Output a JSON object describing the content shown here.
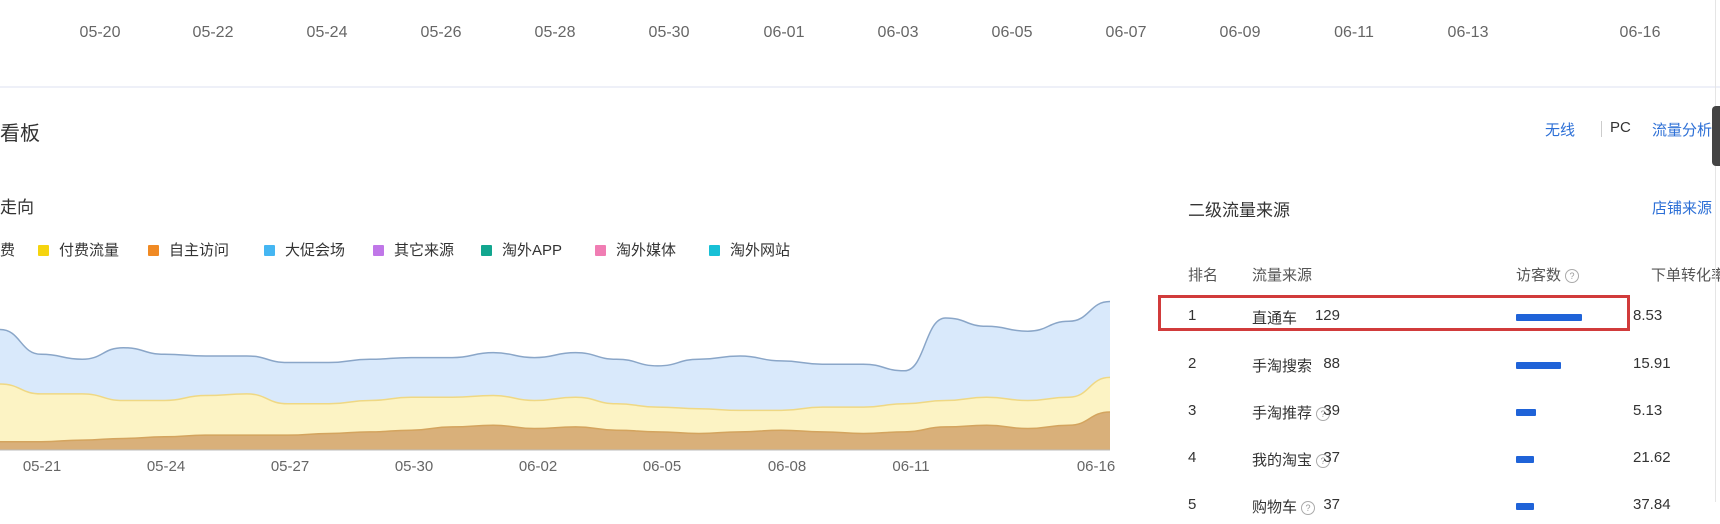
{
  "top_axis": [
    "05-20",
    "05-22",
    "05-24",
    "05-26",
    "05-28",
    "05-30",
    "06-01",
    "06-03",
    "06-05",
    "06-07",
    "06-09",
    "06-11",
    "06-13",
    "06-16"
  ],
  "board": {
    "title": "看板",
    "toggle_wireless": "无线",
    "toggle_pc": "PC",
    "flow_link": "流量分析"
  },
  "trend": {
    "subtitle": "走向",
    "legend": [
      {
        "label": "费",
        "color": "#2c6fd6"
      },
      {
        "label": "付费流量",
        "color": "#f5d40f"
      },
      {
        "label": "自主访问",
        "color": "#f08a24"
      },
      {
        "label": "大促会场",
        "color": "#45b6f2"
      },
      {
        "label": "其它来源",
        "color": "#c077e8"
      },
      {
        "label": "淘外APP",
        "color": "#12a68f"
      },
      {
        "label": "淘外媒体",
        "color": "#f07db3"
      },
      {
        "label": "淘外网站",
        "color": "#18c0d6"
      }
    ]
  },
  "chart_data": {
    "type": "area",
    "x": [
      "05-20",
      "05-21",
      "05-22",
      "05-23",
      "05-24",
      "05-25",
      "05-26",
      "05-27",
      "05-28",
      "05-29",
      "05-30",
      "05-31",
      "06-01",
      "06-02",
      "06-03",
      "06-04",
      "06-05",
      "06-06",
      "06-07",
      "06-08",
      "06-09",
      "06-10",
      "06-11",
      "06-12",
      "06-13",
      "06-14",
      "06-15",
      "06-16"
    ],
    "x_tick_labels": [
      "05-21",
      "05-24",
      "05-27",
      "05-30",
      "06-02",
      "06-05",
      "06-08",
      "06-11",
      "06-16"
    ],
    "series": [
      {
        "name": "自主访问",
        "color": "#d9b07a",
        "values": [
          5,
          5,
          6,
          7,
          8,
          9,
          9,
          9,
          10,
          11,
          12,
          14,
          15,
          13,
          14,
          12,
          11,
          10,
          11,
          12,
          11,
          10,
          11,
          14,
          15,
          13,
          15,
          23
        ]
      },
      {
        "name": "付费流量",
        "color": "#fcf3c4",
        "values": [
          40,
          34,
          34,
          30,
          30,
          33,
          34,
          28,
          28,
          30,
          32,
          32,
          33,
          30,
          32,
          28,
          26,
          25,
          24,
          24,
          26,
          26,
          28,
          30,
          32,
          30,
          32,
          44
        ]
      },
      {
        "name": "大促会场",
        "color": "#d9e9fb",
        "values": [
          73,
          58,
          55,
          62,
          58,
          57,
          57,
          53,
          53,
          55,
          56,
          56,
          59,
          56,
          59,
          55,
          51,
          55,
          57,
          54,
          52,
          52,
          48,
          80,
          75,
          72,
          78,
          90
        ]
      }
    ],
    "ylim": [
      0,
      100
    ],
    "xlabel": "",
    "ylabel": ""
  },
  "secondary": {
    "title": "二级流量来源",
    "link": "店铺来源",
    "columns": {
      "rank": "排名",
      "source": "流量来源",
      "visitors": "访客数",
      "rate": "下单转化率"
    },
    "rows": [
      {
        "rank": "1",
        "source": "直通车",
        "visitors": "129",
        "bar": 1.0,
        "rate": "8.53",
        "help": false
      },
      {
        "rank": "2",
        "source": "手淘搜索",
        "visitors": "88",
        "bar": 0.68,
        "rate": "15.91",
        "help": false
      },
      {
        "rank": "3",
        "source": "手淘推荐",
        "visitors": "39",
        "bar": 0.3,
        "rate": "5.13",
        "help": true
      },
      {
        "rank": "4",
        "source": "我的淘宝",
        "visitors": "37",
        "bar": 0.28,
        "rate": "21.62",
        "help": true
      },
      {
        "rank": "5",
        "source": "购物车",
        "visitors": "37",
        "bar": 0.28,
        "rate": "37.84",
        "help": true
      }
    ]
  },
  "colors": {
    "accent": "#2c6fd6",
    "bar": "#1f63d8",
    "highlight": "#d13b3b"
  }
}
